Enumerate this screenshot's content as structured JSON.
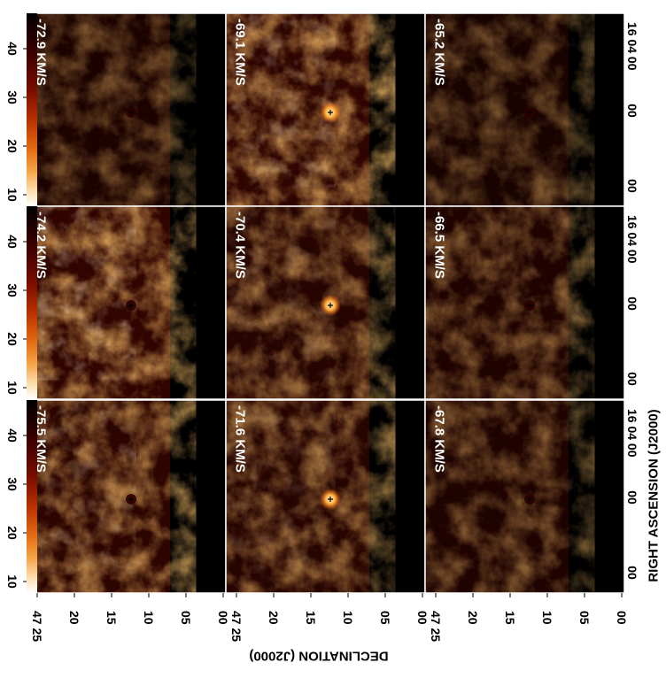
{
  "figure": {
    "colors": {
      "background": "#ffffff",
      "panel_border": "#ffffff",
      "velocity_text": "#ffffff",
      "axis_text": "#000000"
    },
    "colormap": [
      "#000000",
      "#3a0000",
      "#7a0d00",
      "#b83000",
      "#e26a10",
      "#f6a54a",
      "#fde3b8",
      "#ffffff"
    ],
    "x_axis_label": "DECLINATION (J2000)",
    "y_axis_label": "RIGHT ASCENSION (J2000)",
    "colorbar_ticks": [
      "10",
      "20",
      "30",
      "40"
    ],
    "dec_ticks": [
      "47 25",
      "20",
      "15",
      "10",
      "05",
      "00"
    ],
    "ra_ticks": [
      "16 04 00",
      "00",
      "00"
    ],
    "velocity_unit_note": "KM/S",
    "panels": [
      {
        "velocity": "-72.9 KM/S",
        "intensity": 0.35,
        "source_bright": false
      },
      {
        "velocity": "-74.2 KM/S",
        "intensity": 0.85,
        "source_bright": false
      },
      {
        "velocity": "-75.5 KM/S",
        "intensity": 0.75,
        "source_bright": false
      },
      {
        "velocity": "-69.1 KM/S",
        "intensity": 0.8,
        "source_bright": true
      },
      {
        "velocity": "-70.4 KM/S",
        "intensity": 0.6,
        "source_bright": true
      },
      {
        "velocity": "-71.6 KM/S",
        "intensity": 0.6,
        "source_bright": true
      },
      {
        "velocity": "-65.2 KM/S",
        "intensity": 0.3,
        "source_bright": false
      },
      {
        "velocity": "-66.5 KM/S",
        "intensity": 0.45,
        "source_bright": false
      },
      {
        "velocity": "-67.8 KM/S",
        "intensity": 0.4,
        "source_bright": false
      }
    ]
  }
}
